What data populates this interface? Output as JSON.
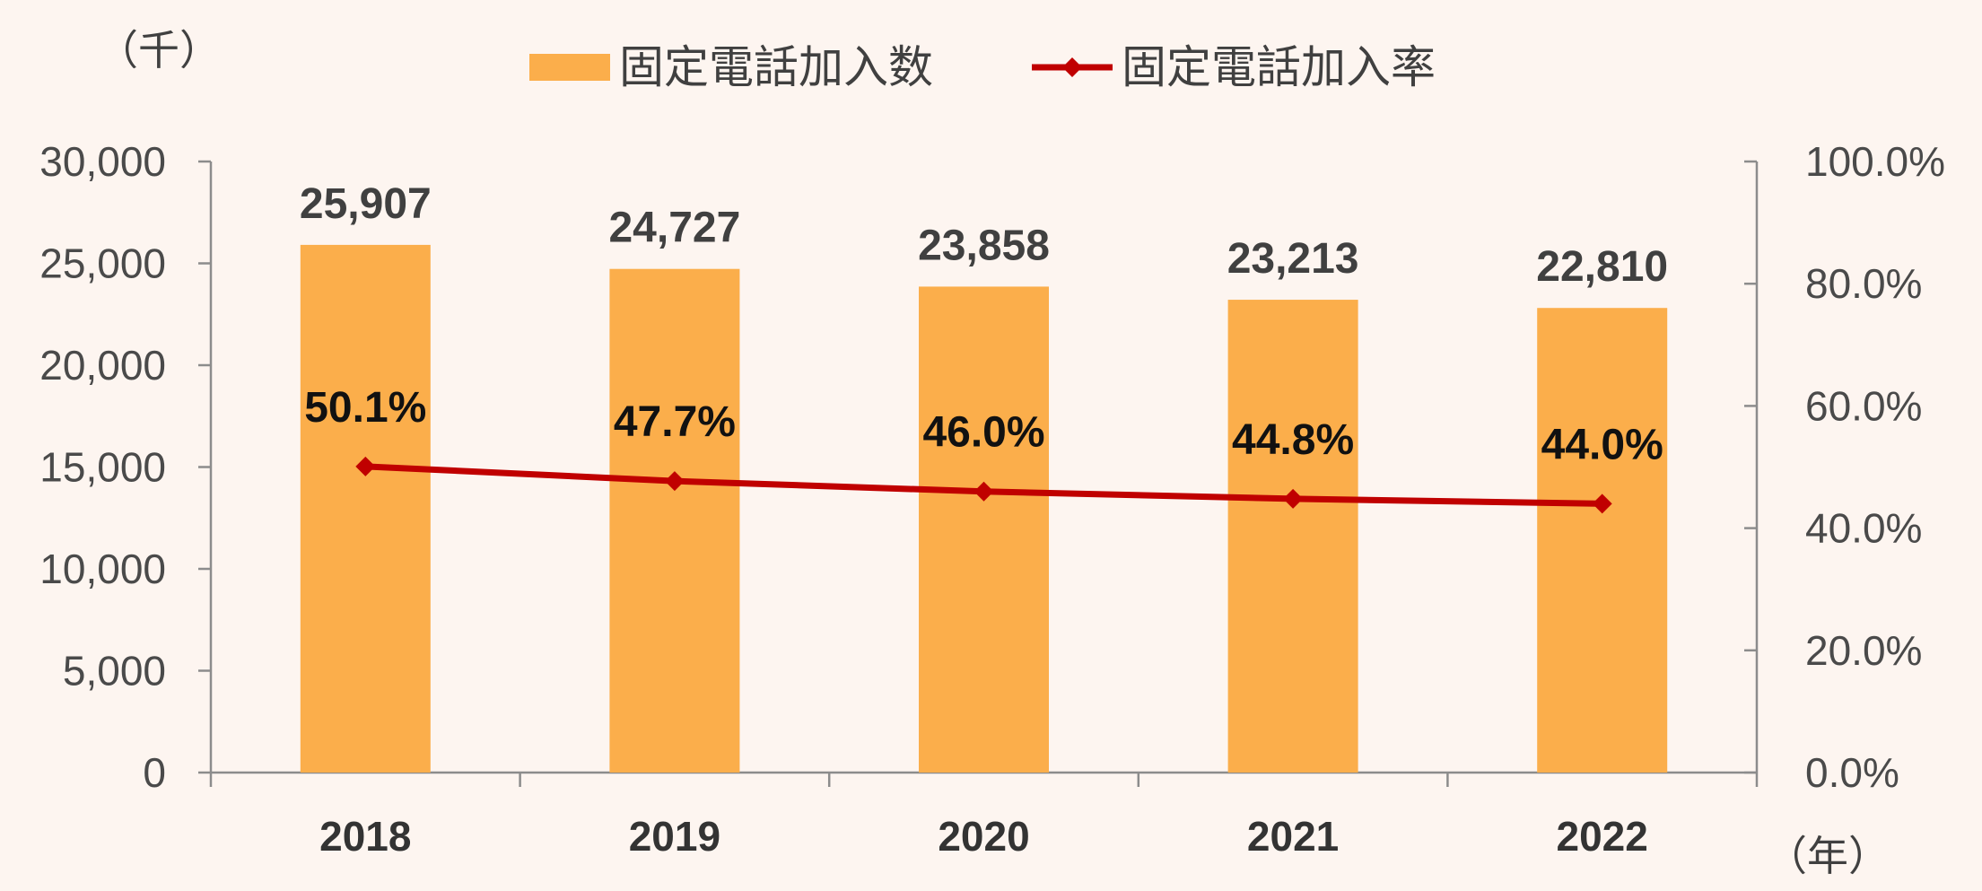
{
  "colors": {
    "bar": "#FBAE4B",
    "line": "#C00000",
    "background": "#FDF5F0"
  },
  "legend": {
    "bar_label": "固定電話加入数",
    "line_label": "固定電話加入率"
  },
  "units": {
    "left": "（千）",
    "x": "（年）"
  },
  "chart_data": {
    "type": "bar",
    "categories": [
      "2018",
      "2019",
      "2020",
      "2021",
      "2022"
    ],
    "series": [
      {
        "name": "固定電話加入数",
        "type": "bar",
        "axis": "left",
        "values": [
          25907,
          24727,
          23858,
          23213,
          22810
        ],
        "labels": [
          "25,907",
          "24,727",
          "23,858",
          "23,213",
          "22,810"
        ]
      },
      {
        "name": "固定電話加入率",
        "type": "line",
        "axis": "right",
        "values": [
          50.1,
          47.7,
          46.0,
          44.8,
          44.0
        ],
        "labels": [
          "50.1%",
          "47.7%",
          "46.0%",
          "44.8%",
          "44.0%"
        ]
      }
    ],
    "y_left": {
      "ylim": [
        0,
        30000
      ],
      "ticks": [
        0,
        5000,
        10000,
        15000,
        20000,
        25000,
        30000
      ],
      "tick_labels": [
        "0",
        "5,000",
        "10,000",
        "15,000",
        "20,000",
        "25,000",
        "30,000"
      ]
    },
    "y_right": {
      "ylim": [
        0,
        100
      ],
      "ticks": [
        0,
        20,
        40,
        60,
        80,
        100
      ],
      "tick_labels": [
        "0.0%",
        "20.0%",
        "40.0%",
        "60.0%",
        "80.0%",
        "100.0%"
      ]
    },
    "grid": false,
    "legend_position": "top-center"
  }
}
